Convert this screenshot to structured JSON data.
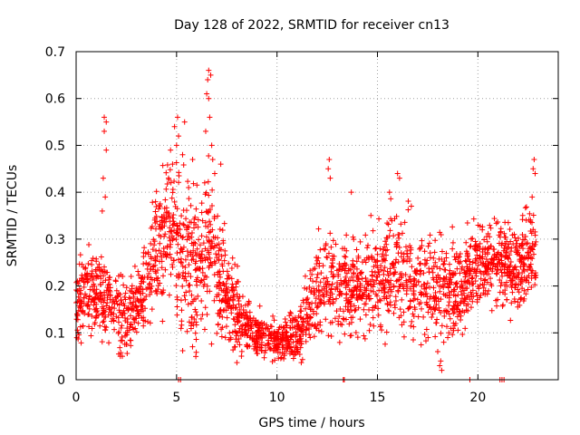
{
  "chart_data": {
    "type": "scatter",
    "title": "Day 128 of 2022, SRMTID for receiver cn13",
    "xlabel": "GPS time / hours",
    "ylabel": "SRMTID / TECUs",
    "xlim": [
      0,
      24
    ],
    "ylim": [
      0,
      0.7
    ],
    "x_ticks": [
      0,
      5,
      10,
      15,
      20
    ],
    "x_tick_labels": [
      "0",
      "5",
      "10",
      "15",
      "20"
    ],
    "y_ticks": [
      0,
      0.1,
      0.2,
      0.3,
      0.4,
      0.5,
      0.6,
      0.7
    ],
    "y_tick_labels": [
      "0",
      "0.1",
      "0.2",
      "0.3",
      "0.4",
      "0.5",
      "0.6",
      "0.7"
    ],
    "grid": true,
    "marker": "+",
    "color": "#ff0000",
    "trend_hours": [
      0,
      1,
      2,
      2.5,
      3.5,
      4,
      4.5,
      5,
      5.5,
      6,
      6.5,
      7,
      8,
      9,
      10,
      11,
      11.5,
      12,
      13,
      14,
      15,
      16,
      17,
      18,
      19,
      20,
      21,
      22,
      22.8
    ],
    "trend_values": [
      0.17,
      0.19,
      0.15,
      0.13,
      0.19,
      0.27,
      0.31,
      0.3,
      0.25,
      0.24,
      0.27,
      0.24,
      0.14,
      0.1,
      0.08,
      0.09,
      0.13,
      0.2,
      0.2,
      0.2,
      0.21,
      0.23,
      0.21,
      0.2,
      0.19,
      0.25,
      0.26,
      0.24,
      0.27
    ],
    "spread_hours": [
      0,
      1,
      2,
      3,
      4,
      5,
      6,
      7,
      8,
      9,
      10,
      11,
      12,
      13,
      14,
      15,
      16,
      17,
      18,
      19,
      20,
      21,
      22,
      23
    ],
    "spread_values": [
      0.04,
      0.045,
      0.04,
      0.04,
      0.06,
      0.08,
      0.08,
      0.07,
      0.04,
      0.025,
      0.02,
      0.025,
      0.05,
      0.055,
      0.05,
      0.055,
      0.06,
      0.055,
      0.05,
      0.05,
      0.045,
      0.045,
      0.05,
      0.05
    ],
    "spike_points": [
      {
        "x": 1.4,
        "y": 0.56
      },
      {
        "x": 1.4,
        "y": 0.53
      },
      {
        "x": 1.5,
        "y": 0.55
      },
      {
        "x": 1.5,
        "y": 0.49
      },
      {
        "x": 1.35,
        "y": 0.43
      },
      {
        "x": 1.45,
        "y": 0.39
      },
      {
        "x": 1.3,
        "y": 0.36
      },
      {
        "x": 5.05,
        "y": 0.56
      },
      {
        "x": 4.9,
        "y": 0.54
      },
      {
        "x": 5.1,
        "y": 0.52
      },
      {
        "x": 5.0,
        "y": 0.5
      },
      {
        "x": 5.4,
        "y": 0.55
      },
      {
        "x": 5.3,
        "y": 0.48
      },
      {
        "x": 4.7,
        "y": 0.49
      },
      {
        "x": 4.8,
        "y": 0.46
      },
      {
        "x": 5.6,
        "y": 0.41
      },
      {
        "x": 5.8,
        "y": 0.47
      },
      {
        "x": 4.6,
        "y": 0.43
      },
      {
        "x": 6.6,
        "y": 0.66
      },
      {
        "x": 6.55,
        "y": 0.64
      },
      {
        "x": 6.7,
        "y": 0.65
      },
      {
        "x": 6.5,
        "y": 0.61
      },
      {
        "x": 6.6,
        "y": 0.6
      },
      {
        "x": 6.65,
        "y": 0.56
      },
      {
        "x": 6.45,
        "y": 0.53
      },
      {
        "x": 6.75,
        "y": 0.5
      },
      {
        "x": 6.8,
        "y": 0.47
      },
      {
        "x": 6.9,
        "y": 0.44
      },
      {
        "x": 6.4,
        "y": 0.42
      },
      {
        "x": 7.2,
        "y": 0.46
      },
      {
        "x": 12.6,
        "y": 0.47
      },
      {
        "x": 12.55,
        "y": 0.45
      },
      {
        "x": 12.65,
        "y": 0.43
      },
      {
        "x": 13.7,
        "y": 0.4
      },
      {
        "x": 15.6,
        "y": 0.4
      },
      {
        "x": 16.0,
        "y": 0.44
      },
      {
        "x": 16.1,
        "y": 0.43
      },
      {
        "x": 22.8,
        "y": 0.47
      },
      {
        "x": 22.75,
        "y": 0.45
      },
      {
        "x": 22.85,
        "y": 0.44
      },
      {
        "x": 22.7,
        "y": 0.39
      },
      {
        "x": 2.2,
        "y": 0.05
      },
      {
        "x": 2.3,
        "y": 0.05
      },
      {
        "x": 18.1,
        "y": 0.03
      },
      {
        "x": 18.2,
        "y": 0.02
      },
      {
        "x": 18.15,
        "y": 0.04
      },
      {
        "x": 18.0,
        "y": 0.06
      },
      {
        "x": 18.3,
        "y": 0.08
      },
      {
        "x": 18.5,
        "y": 0.09
      }
    ],
    "zero_points": [
      {
        "x": 5.1,
        "y": 0.0
      },
      {
        "x": 5.2,
        "y": 0.0
      },
      {
        "x": 13.3,
        "y": 0.0
      },
      {
        "x": 13.35,
        "y": 0.0
      },
      {
        "x": 19.6,
        "y": 0.0
      },
      {
        "x": 21.1,
        "y": 0.0
      },
      {
        "x": 21.2,
        "y": 0.0
      },
      {
        "x": 21.3,
        "y": 0.0
      }
    ],
    "approx_point_count": 2600
  }
}
